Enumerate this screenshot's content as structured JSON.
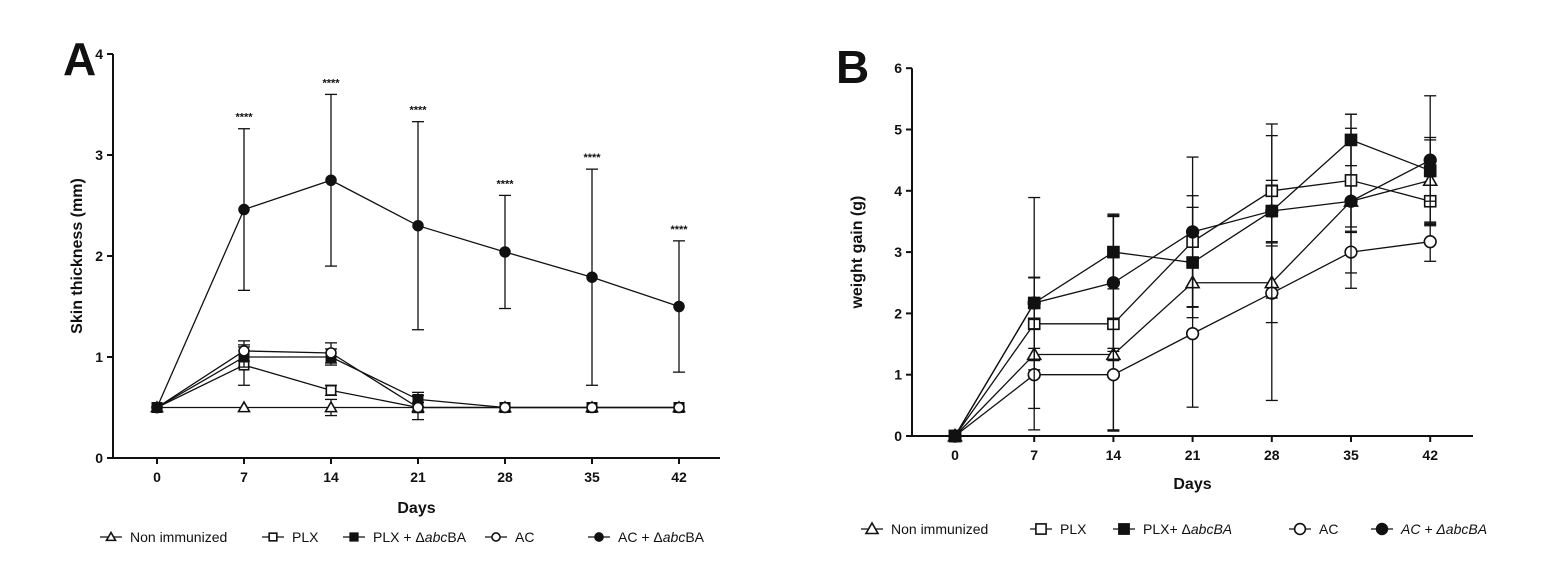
{
  "chart_data": [
    {
      "panel": "A",
      "type": "line",
      "xlabel": "Days",
      "ylabel": "Skin thickness (mm)",
      "x": [
        0,
        7,
        14,
        21,
        28,
        35,
        42
      ],
      "xticks": [
        "0",
        "7",
        "14",
        "21",
        "28",
        "35",
        "42"
      ],
      "yticks": [
        "0",
        "1",
        "2",
        "3",
        "4"
      ],
      "ylim": [
        0,
        4
      ],
      "grid": false,
      "legend_position": "bottom",
      "annotations": [
        "",
        "****",
        "****",
        "****",
        "****",
        "****",
        "****"
      ],
      "series": [
        {
          "name": "Non immunized",
          "legend_prefix": "Non immunized",
          "legend_italic": "",
          "legend_suffix": "",
          "marker": "triangle-open",
          "values": [
            0.5,
            0.5,
            0.5,
            0.5,
            0.5,
            0.5,
            0.5
          ],
          "error": [
            0,
            0,
            0.08,
            0,
            0,
            0,
            0
          ]
        },
        {
          "name": "PLX",
          "legend_prefix": "PLX",
          "legend_italic": "",
          "legend_suffix": "",
          "marker": "square-open",
          "values": [
            0.5,
            0.92,
            0.67,
            0.5,
            0.5,
            0.5,
            0.5
          ],
          "error": [
            0,
            0.2,
            0.05,
            0.05,
            0,
            0,
            0
          ]
        },
        {
          "name": "PLX + ΔabcBA",
          "legend_prefix": "PLX + Δ",
          "legend_italic": "abc",
          "legend_suffix": "BA",
          "marker": "square-filled",
          "values": [
            0.5,
            1.0,
            1.0,
            0.58,
            0.5,
            0.5,
            0.5
          ],
          "error": [
            0,
            0.1,
            0.08,
            0.07,
            0,
            0,
            0
          ]
        },
        {
          "name": "AC",
          "legend_prefix": "AC",
          "legend_italic": "",
          "legend_suffix": "",
          "marker": "circle-open",
          "values": [
            0.5,
            1.06,
            1.04,
            0.5,
            0.5,
            0.5,
            0.5
          ],
          "error": [
            0,
            0.1,
            0.1,
            0.12,
            0,
            0,
            0
          ]
        },
        {
          "name": "AC + ΔabcBA",
          "legend_prefix": "AC + Δ",
          "legend_italic": "abc",
          "legend_suffix": "BA",
          "marker": "circle-filled",
          "values": [
            0.5,
            2.46,
            2.75,
            2.3,
            2.04,
            1.79,
            1.5
          ],
          "error": [
            0,
            0.8,
            0.85,
            1.03,
            0.56,
            1.07,
            0.65
          ]
        }
      ]
    },
    {
      "panel": "B",
      "type": "line",
      "xlabel": "Days",
      "ylabel": "weight gain (g)",
      "x": [
        0,
        7,
        14,
        21,
        28,
        35,
        42
      ],
      "xticks": [
        "0",
        "7",
        "14",
        "21",
        "28",
        "35",
        "42"
      ],
      "yticks": [
        "0",
        "1",
        "2",
        "3",
        "4",
        "5",
        "6"
      ],
      "ylim": [
        0,
        6
      ],
      "grid": false,
      "legend_position": "bottom",
      "series": [
        {
          "name": "Non immunized",
          "legend_prefix": "Non immunized",
          "legend_italic": "",
          "legend_suffix": "",
          "marker": "triangle-open",
          "values": [
            0,
            1.33,
            1.33,
            2.5,
            2.5,
            3.83,
            4.17
          ],
          "error": [
            0,
            0.1,
            0.1,
            0.4,
            0.65,
            0.42,
            0.7
          ]
        },
        {
          "name": "PLX",
          "legend_prefix": "PLX",
          "legend_italic": "",
          "legend_suffix": "",
          "marker": "square-open",
          "values": [
            0,
            1.83,
            1.83,
            3.17,
            4.0,
            4.17,
            3.83
          ],
          "error": [
            0,
            0.75,
            1.75,
            0.75,
            0.9,
            0.85,
            0.4
          ]
        },
        {
          "name": "PLX+ ΔabcBA",
          "legend_prefix": "PLX+ Δ",
          "legend_italic": "abcBA",
          "legend_suffix": "",
          "marker": "square-filled",
          "values": [
            0,
            2.17,
            3.0,
            2.83,
            3.67,
            4.83,
            4.33
          ],
          "error": [
            0,
            0.42,
            0.6,
            0.9,
            0.5,
            0.42,
            0.5
          ]
        },
        {
          "name": "AC",
          "legend_prefix": "AC",
          "legend_italic": "",
          "legend_suffix": "",
          "marker": "circle-open",
          "values": [
            0,
            1.0,
            1.0,
            1.67,
            2.33,
            3.0,
            3.17
          ],
          "error": [
            0,
            0.9,
            0.9,
            1.2,
            1.75,
            0.34,
            0.32
          ]
        },
        {
          "name": "AC + ΔabcBA",
          "legend_prefix": "",
          "legend_italic": "AC + ΔabcBA",
          "legend_suffix": "",
          "marker": "circle-filled",
          "values": [
            0,
            2.17,
            2.5,
            3.33,
            3.67,
            3.83,
            4.5
          ],
          "error": [
            0,
            1.72,
            1.12,
            1.22,
            1.42,
            1.42,
            1.05
          ]
        }
      ]
    }
  ]
}
